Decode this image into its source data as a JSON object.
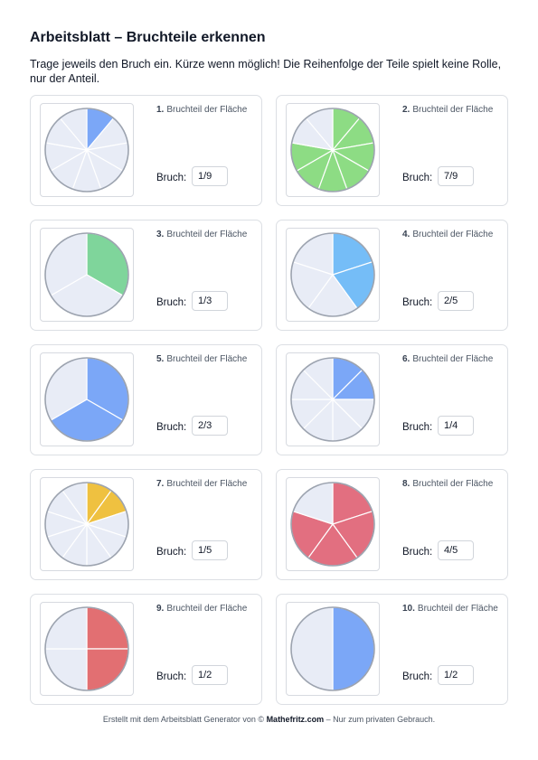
{
  "title": "Arbeitsblatt – Bruchteile erkennen",
  "instructions": "Trage jeweils den Bruch ein. Kürze wenn möglich! Die Reihenfolge der Teile spielt keine Rolle, nur der Anteil.",
  "tasks": [
    {
      "number": "1.",
      "prompt": "Bruchteil der Fläche",
      "answer_label": "Bruch:",
      "answer": "1/9",
      "slices": 9,
      "filled": [
        0
      ],
      "start_deg": 0,
      "color": "#7ba7f7"
    },
    {
      "number": "2.",
      "prompt": "Bruchteil der Fläche",
      "answer_label": "Bruch:",
      "answer": "7/9",
      "slices": 9,
      "filled": [
        0,
        1,
        2,
        3,
        4,
        5,
        6
      ],
      "start_deg": 0,
      "color": "#8ddc84"
    },
    {
      "number": "3.",
      "prompt": "Bruchteil der Fläche",
      "answer_label": "Bruch:",
      "answer": "1/3",
      "slices": 3,
      "filled": [
        0
      ],
      "start_deg": 0,
      "color": "#7fd59b"
    },
    {
      "number": "4.",
      "prompt": "Bruchteil der Fläche",
      "answer_label": "Bruch:",
      "answer": "2/5",
      "slices": 5,
      "filled": [
        0,
        1
      ],
      "start_deg": 0,
      "color": "#75bdf7"
    },
    {
      "number": "5.",
      "prompt": "Bruchteil der Fläche",
      "answer_label": "Bruch:",
      "answer": "2/3",
      "slices": 3,
      "filled": [
        0,
        1
      ],
      "start_deg": 0,
      "color": "#7ba7f7"
    },
    {
      "number": "6.",
      "prompt": "Bruchteil der Fläche",
      "answer_label": "Bruch:",
      "answer": "1/4",
      "slices": 8,
      "filled": [
        0,
        1
      ],
      "start_deg": 0,
      "color": "#7ba7f7"
    },
    {
      "number": "7.",
      "prompt": "Bruchteil der Fläche",
      "answer_label": "Bruch:",
      "answer": "1/5",
      "slices": 10,
      "filled": [
        0,
        1
      ],
      "start_deg": 0,
      "color": "#efc140"
    },
    {
      "number": "8.",
      "prompt": "Bruchteil der Fläche",
      "answer_label": "Bruch:",
      "answer": "4/5",
      "slices": 5,
      "filled": [
        0,
        1,
        2,
        3
      ],
      "start_deg": 0,
      "color": "#e26f80"
    },
    {
      "number": "9.",
      "prompt": "Bruchteil der Fläche",
      "answer_label": "Bruch:",
      "answer": "1/2",
      "slices": 4,
      "filled": [
        0,
        1
      ],
      "start_deg": 0,
      "color": "#e26f72"
    },
    {
      "number": "10.",
      "prompt": "Bruchteil der Fläche",
      "answer_label": "Bruch:",
      "answer": "1/2",
      "slices": 2,
      "filled": [
        0
      ],
      "start_deg": 0,
      "color": "#7ba7f7"
    }
  ],
  "empty_color": "#e8ecf6",
  "outline_color": "#9ca3af",
  "footer": {
    "prefix": "Erstellt mit dem Arbeitsblatt Generator von © ",
    "brand": "Mathefritz.com",
    "suffix": " – Nur zum privaten Gebrauch."
  }
}
